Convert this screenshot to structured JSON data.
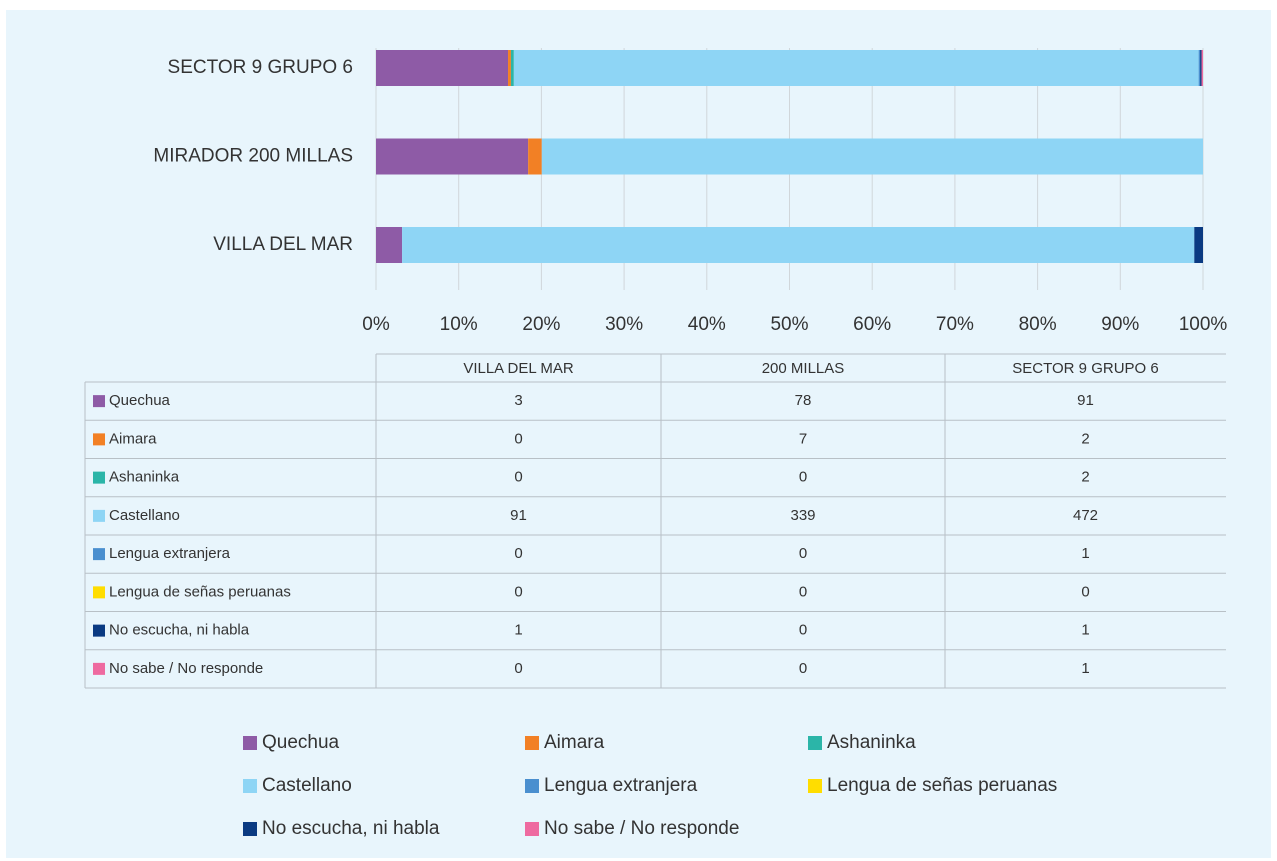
{
  "chart_data": {
    "type": "bar",
    "orientation": "horizontal",
    "stacking": "percent",
    "categories": [
      "VILLA DEL MAR",
      "MIRADOR 200 MILLAS",
      "SECTOR 9 GRUPO 6"
    ],
    "table_columns": [
      "VILLA DEL MAR",
      "200 MILLAS",
      "SECTOR 9 GRUPO 6"
    ],
    "series": [
      {
        "name": "Quechua",
        "color": "#8e5ba6",
        "values": [
          3,
          78,
          91
        ]
      },
      {
        "name": "Aimara",
        "color": "#f28025",
        "values": [
          0,
          7,
          2
        ]
      },
      {
        "name": "Ashaninka",
        "color": "#2bb5a8",
        "values": [
          0,
          0,
          2
        ]
      },
      {
        "name": "Castellano",
        "color": "#8ed5f5",
        "values": [
          91,
          339,
          472
        ]
      },
      {
        "name": "Lengua extranjera",
        "color": "#4a8fcf",
        "values": [
          0,
          0,
          1
        ]
      },
      {
        "name": "Lengua de señas peruanas",
        "color": "#ffdd00",
        "values": [
          0,
          0,
          0
        ]
      },
      {
        "name": "No escucha, ni habla",
        "color": "#0a3a82",
        "values": [
          1,
          0,
          1
        ]
      },
      {
        "name": "No sabe / No responde",
        "color": "#ee6aa0",
        "values": [
          0,
          0,
          1
        ]
      }
    ],
    "xlim": [
      0,
      100
    ],
    "xticks": [
      {
        "value": 0,
        "label": "0%"
      },
      {
        "value": 10,
        "label": "10%"
      },
      {
        "value": 20,
        "label": "20%"
      },
      {
        "value": 30,
        "label": "30%"
      },
      {
        "value": 40,
        "label": "40%"
      },
      {
        "value": 50,
        "label": "50%"
      },
      {
        "value": 60,
        "label": "60%"
      },
      {
        "value": 70,
        "label": "70%"
      },
      {
        "value": 80,
        "label": "80%"
      },
      {
        "value": 90,
        "label": "90%"
      },
      {
        "value": 100,
        "label": "100%"
      }
    ],
    "grid": true
  }
}
